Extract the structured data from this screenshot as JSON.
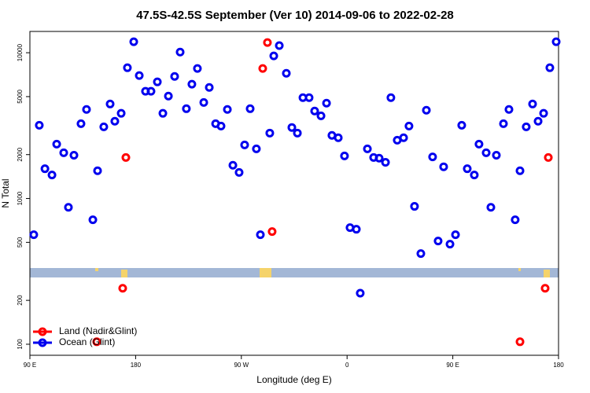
{
  "chart_data": {
    "type": "scatter",
    "title": "47.5S-42.5S September (Ver 10)   2014-09-06 to 2022-02-28",
    "xlabel": "Longitude (deg E)",
    "ylabel": "N Total",
    "log_y": true,
    "legend": "lower left",
    "xlim": [
      90,
      540
    ],
    "xticks": [
      {
        "value": 90,
        "label": "90 E"
      },
      180,
      {
        "value": 270,
        "label": "90 W"
      },
      {
        "value": 360,
        "label": "0"
      },
      {
        "value": 450,
        "label": "90 E"
      },
      {
        "value": 540,
        "label": "180"
      }
    ],
    "ylim": [
      84,
      14000
    ],
    "yticks": [
      100,
      200,
      500,
      1000,
      2000,
      5000,
      10000
    ],
    "series": [
      {
        "name": "Land (Nadir&Glint)",
        "color": "#ff0000",
        "x": [
          146.9,
          169,
          171.7,
          288.2,
          292.2,
          296.2,
          507.2,
          528.6,
          531.3
        ],
        "values": [
          104,
          242,
          1910,
          7800,
          11750,
          593,
          104,
          242,
          1910
        ]
      },
      {
        "name": "Ocean (Glint)",
        "color": "#0000ee",
        "x": [
          93.3,
          98,
          102.8,
          108.8,
          112.8,
          118.8,
          122.8,
          127.5,
          133.5,
          138.2,
          143.6,
          147.6,
          152.9,
          158.3,
          162.3,
          167.7,
          173,
          178.4,
          183.1,
          188.4,
          193.1,
          198.5,
          203.2,
          207.9,
          213.2,
          217.9,
          223.2,
          227.9,
          232.6,
          238,
          242.7,
          248.1,
          252.7,
          258.1,
          262.8,
          268.1,
          272.8,
          277.5,
          282.8,
          286.2,
          294.2,
          297.6,
          302.3,
          308.3,
          313,
          317.7,
          322.4,
          327.7,
          332.4,
          337.8,
          342.5,
          347.1,
          352.5,
          357.8,
          362.5,
          367.9,
          371.2,
          377.3,
          382.6,
          387.3,
          392.7,
          397.3,
          402.7,
          408.1,
          412.7,
          417.4,
          422.8,
          427.5,
          432.8,
          437.5,
          442.2,
          447.6,
          452.3,
          457.6,
          462.3,
          468.3,
          472.3,
          478.4,
          482.4,
          487.1,
          493.1,
          497.8,
          503.1,
          507.2,
          512.5,
          517.9,
          522.6,
          527.3,
          532.6,
          538
        ],
        "values": [
          564,
          3180,
          1600,
          1450,
          2360,
          2060,
          870,
          1980,
          3260,
          4080,
          714,
          1550,
          3100,
          4450,
          3390,
          3840,
          7890,
          11900,
          6970,
          5440,
          5440,
          6310,
          3840,
          5040,
          6880,
          10100,
          4130,
          6080,
          7800,
          4560,
          5780,
          3260,
          3140,
          4080,
          1690,
          1510,
          2330,
          4130,
          2190,
          564,
          2810,
          9510,
          11200,
          7230,
          3070,
          2810,
          4920,
          4920,
          3980,
          3690,
          4510,
          2710,
          2610,
          1960,
          631,
          615,
          224,
          2190,
          1910,
          1890,
          1770,
          4920,
          2510,
          2610,
          3140,
          883,
          419,
          4030,
          1930,
          511,
          1650,
          486,
          564,
          3180,
          1600,
          1450,
          2360,
          2060,
          870,
          1980,
          3260,
          4080,
          714,
          1550,
          3100,
          4450,
          3390,
          3840,
          7890,
          11900
        ]
      }
    ]
  }
}
